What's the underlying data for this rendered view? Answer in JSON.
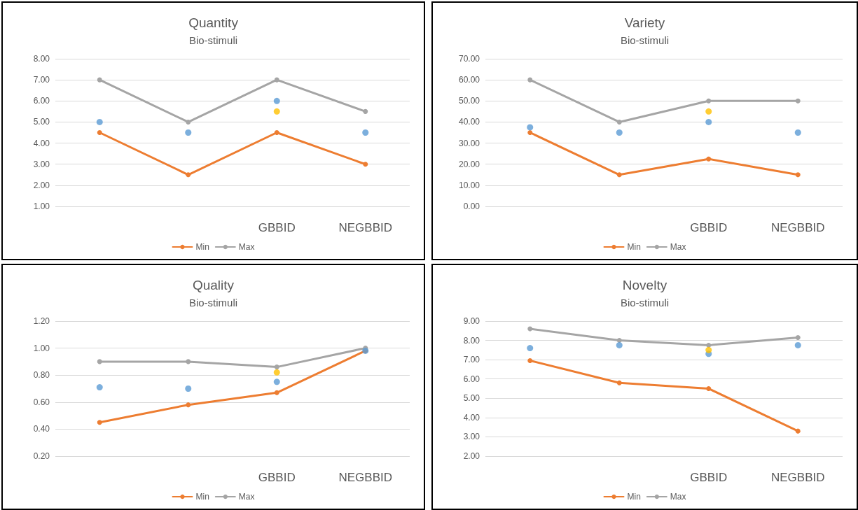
{
  "chart_data": [
    {
      "type": "line",
      "title": "Quantity",
      "subtitle": "Bio-stimuli",
      "categories": [
        null,
        null,
        "GBBID",
        "NEGBBID"
      ],
      "marker": "circle",
      "grid": "y",
      "legend": "bottom",
      "ylim": [
        1,
        8
      ],
      "yticks": [
        {
          "value": 1,
          "label": "1.00"
        },
        {
          "value": 2,
          "label": "2.00"
        },
        {
          "value": 3,
          "label": "3.00"
        },
        {
          "value": 4,
          "label": "4.00"
        },
        {
          "value": 5,
          "label": "5.00"
        },
        {
          "value": 6,
          "label": "6.00"
        },
        {
          "value": 7,
          "label": "7.00"
        },
        {
          "value": 8,
          "label": "8.00"
        }
      ],
      "series": [
        {
          "name": "Min",
          "color": "#ed7d31",
          "values": [
            4.5,
            2.5,
            4.5,
            3
          ]
        },
        {
          "name": "Max",
          "color": "#a5a5a5",
          "values": [
            7,
            5,
            7,
            5.5
          ]
        },
        {
          "type": "scatter",
          "color": "#5b9bd5",
          "values": [
            5,
            4.5,
            6,
            4.5
          ]
        },
        {
          "type": "scatter",
          "color": "#ffc000",
          "values": [
            null,
            null,
            5.5,
            null
          ]
        }
      ]
    },
    {
      "type": "line",
      "title": "Variety",
      "subtitle": "Bio-stimuli",
      "categories": [
        null,
        null,
        "GBBID",
        "NEGBBID"
      ],
      "marker": "circle",
      "grid": "y",
      "legend": "bottom",
      "ylim": [
        0,
        70
      ],
      "yticks": [
        {
          "value": 0,
          "label": "0.00"
        },
        {
          "value": 10,
          "label": "10.00"
        },
        {
          "value": 20,
          "label": "20.00"
        },
        {
          "value": 30,
          "label": "30.00"
        },
        {
          "value": 40,
          "label": "40.00"
        },
        {
          "value": 50,
          "label": "50.00"
        },
        {
          "value": 60,
          "label": "60.00"
        },
        {
          "value": 70,
          "label": "70.00"
        }
      ],
      "series": [
        {
          "name": "Min",
          "color": "#ed7d31",
          "values": [
            35,
            15,
            22.5,
            15
          ]
        },
        {
          "name": "Max",
          "color": "#a5a5a5",
          "values": [
            60,
            40,
            50,
            50
          ]
        },
        {
          "type": "scatter",
          "color": "#5b9bd5",
          "values": [
            37.5,
            35,
            40,
            35
          ]
        },
        {
          "type": "scatter",
          "color": "#ffc000",
          "values": [
            null,
            null,
            45,
            null
          ]
        }
      ]
    },
    {
      "type": "line",
      "title": "Quality",
      "subtitle": "Bio-stimuli",
      "categories": [
        null,
        null,
        "GBBID",
        "NEGBBID"
      ],
      "marker": "circle",
      "grid": "y",
      "legend": "bottom",
      "ylim": [
        0.2,
        1.2
      ],
      "yticks": [
        {
          "value": 0.2,
          "label": "0.20"
        },
        {
          "value": 0.4,
          "label": "0.40"
        },
        {
          "value": 0.6,
          "label": "0.60"
        },
        {
          "value": 0.8,
          "label": "0.80"
        },
        {
          "value": 1,
          "label": "1.00"
        },
        {
          "value": 1.2,
          "label": "1.20"
        }
      ],
      "series": [
        {
          "name": "Min",
          "color": "#ed7d31",
          "values": [
            0.45,
            0.58,
            0.67,
            0.98
          ]
        },
        {
          "name": "Max",
          "color": "#a5a5a5",
          "values": [
            0.9,
            0.9,
            0.86,
            1.0
          ]
        },
        {
          "type": "scatter",
          "color": "#5b9bd5",
          "values": [
            0.71,
            0.7,
            0.75,
            0.98
          ]
        },
        {
          "type": "scatter",
          "color": "#ffc000",
          "values": [
            null,
            null,
            0.82,
            null
          ]
        }
      ]
    },
    {
      "type": "line",
      "title": "Novelty",
      "subtitle": "Bio-stimuli",
      "categories": [
        null,
        null,
        "GBBID",
        "NEGBBID"
      ],
      "marker": "circle",
      "grid": "y",
      "legend": "bottom",
      "ylim": [
        2,
        9
      ],
      "yticks": [
        {
          "value": 2,
          "label": "2.00"
        },
        {
          "value": 3,
          "label": "3.00"
        },
        {
          "value": 4,
          "label": "4.00"
        },
        {
          "value": 5,
          "label": "5.00"
        },
        {
          "value": 6,
          "label": "6.00"
        },
        {
          "value": 7,
          "label": "7.00"
        },
        {
          "value": 8,
          "label": "8.00"
        },
        {
          "value": 9,
          "label": "9.00"
        }
      ],
      "series": [
        {
          "name": "Min",
          "color": "#ed7d31",
          "values": [
            6.95,
            5.8,
            5.5,
            3.3
          ]
        },
        {
          "name": "Max",
          "color": "#a5a5a5",
          "values": [
            8.6,
            8,
            7.75,
            8.15
          ]
        },
        {
          "type": "scatter",
          "color": "#5b9bd5",
          "values": [
            7.6,
            7.75,
            7.3,
            7.75
          ]
        },
        {
          "type": "scatter",
          "color": "#ffc000",
          "values": [
            null,
            null,
            7.5,
            null
          ]
        }
      ]
    }
  ]
}
